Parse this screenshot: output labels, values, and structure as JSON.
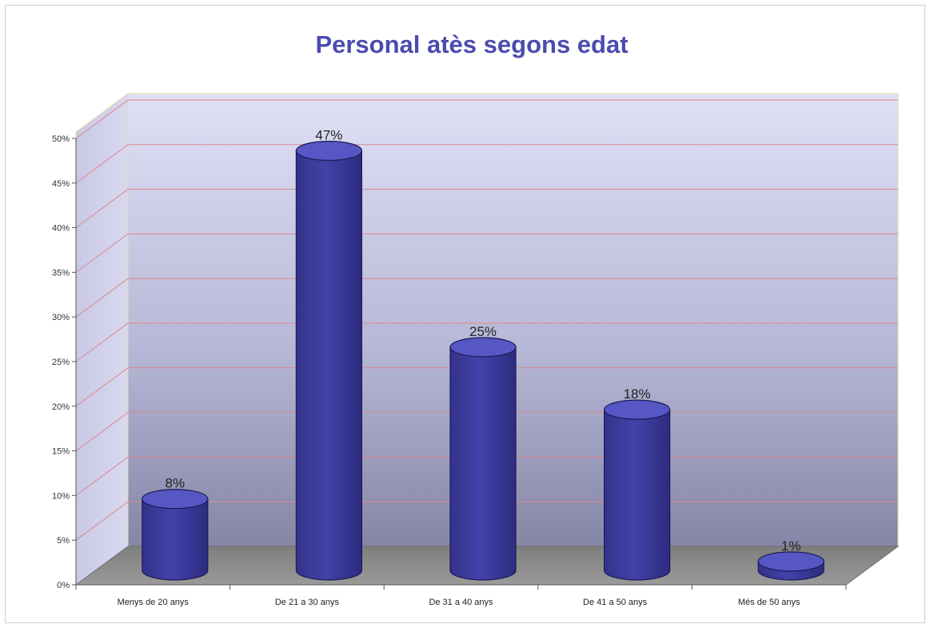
{
  "chart_data": {
    "type": "bar",
    "style": "3d-cylinder",
    "title": "Personal atès segons edat",
    "categories": [
      "Menys de 20 anys",
      "De 21 a 30 anys",
      "De 31 a 40 anys",
      "De 41 a 50 anys",
      "Més de 50 anys"
    ],
    "values": [
      8,
      47,
      25,
      18,
      1
    ],
    "data_labels": [
      "8%",
      "47%",
      "25%",
      "18%",
      "1%"
    ],
    "ylim": [
      0,
      50
    ],
    "yticks": [
      0,
      5,
      10,
      15,
      20,
      25,
      30,
      35,
      40,
      45,
      50
    ],
    "ytick_labels": [
      "0%",
      "5%",
      "10%",
      "15%",
      "20%",
      "25%",
      "30%",
      "35%",
      "40%",
      "45%",
      "50%"
    ],
    "xlabel": "",
    "ylabel": "",
    "grid": true,
    "legend": "none",
    "colors": {
      "title": "#4b4bb0",
      "bar": "#3a3a9a",
      "bar_top": "#5656c4",
      "grid": "#d88a8a",
      "wall_top": "#e0e0f6",
      "wall_bottom": "#8585a6",
      "floor": "#8a8a8a"
    }
  }
}
